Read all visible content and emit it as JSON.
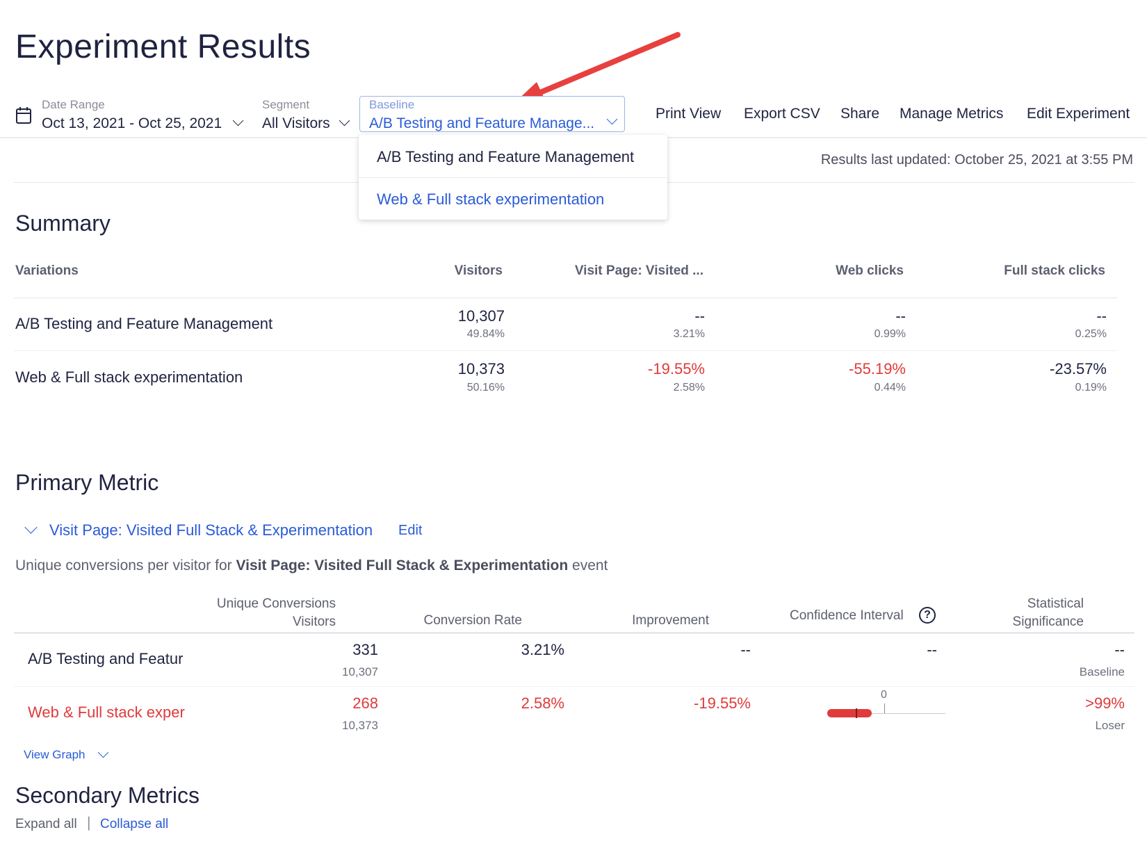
{
  "page_title": "Experiment Results",
  "filters": {
    "date_range": {
      "label": "Date Range",
      "value": "Oct 13, 2021 - Oct 25, 2021"
    },
    "segment": {
      "label": "Segment",
      "value": "All Visitors"
    },
    "baseline": {
      "label": "Baseline",
      "value": "A/B Testing and Feature Manage..."
    }
  },
  "actions": [
    "Print View",
    "Export CSV",
    "Share",
    "Manage Metrics",
    "Edit Experiment"
  ],
  "baseline_menu": [
    "A/B Testing and Feature Management",
    "Web & Full stack experimentation"
  ],
  "results_updated": "Results last updated: October 25, 2021 at 3:55 PM",
  "summary": {
    "title": "Summary",
    "columns": [
      "Variations",
      "Visitors",
      "Visit Page: Visited ...",
      "Web clicks",
      "Full stack clicks"
    ],
    "rows": [
      {
        "name": "A/B Testing and Feature Management",
        "visitors": "10,307",
        "visitors_pct": "49.84%",
        "visit_page": "--",
        "visit_page_rate": "3.21%",
        "web_clicks": "--",
        "web_clicks_rate": "0.99%",
        "fullstack": "--",
        "fullstack_rate": "0.25%"
      },
      {
        "name": "Web & Full stack experimentation",
        "visitors": "10,373",
        "visitors_pct": "50.16%",
        "visit_page": "-19.55%",
        "visit_page_rate": "2.58%",
        "web_clicks": "-55.19%",
        "web_clicks_rate": "0.44%",
        "fullstack": "-23.57%",
        "fullstack_rate": "0.19%"
      }
    ]
  },
  "primary": {
    "title": "Primary Metric",
    "metric_name": "Visit Page: Visited Full Stack & Experimentation",
    "edit_label": "Edit",
    "desc_prefix": "Unique conversions per visitor for ",
    "desc_bold": "Visit Page: Visited Full Stack & Experimentation",
    "desc_suffix": " event",
    "columns": {
      "uc_line1": "Unique Conversions",
      "uc_line2": "Visitors",
      "conv_rate": "Conversion Rate",
      "improvement": "Improvement",
      "ci": "Confidence Interval",
      "ci_help": "?",
      "sig_line1": "Statistical",
      "sig_line2": "Significance"
    },
    "rows": [
      {
        "name": "A/B Testing and Featur",
        "conversions": "331",
        "visitors": "10,307",
        "rate": "3.21%",
        "improvement": "--",
        "ci": "--",
        "significance": "--",
        "sig_label": "Baseline"
      },
      {
        "name": "Web & Full stack exper",
        "conversions": "268",
        "visitors": "10,373",
        "rate": "2.58%",
        "improvement": "-19.55%",
        "ci_zero": "0",
        "significance": ">99%",
        "sig_label": "Loser"
      }
    ],
    "view_graph": "View Graph"
  },
  "secondary": {
    "title": "Secondary Metrics",
    "expand_all": "Expand all",
    "separator": "|",
    "collapse_all": "Collapse all"
  },
  "colors": {
    "accent": "#2a5bd7",
    "negative": "#e03a3a",
    "text": "#1f2340",
    "arrow": "#e8403e"
  },
  "icons": [
    "calendar-icon",
    "chevron-down-icon",
    "help-circle-icon",
    "red-arrow-annotation"
  ]
}
